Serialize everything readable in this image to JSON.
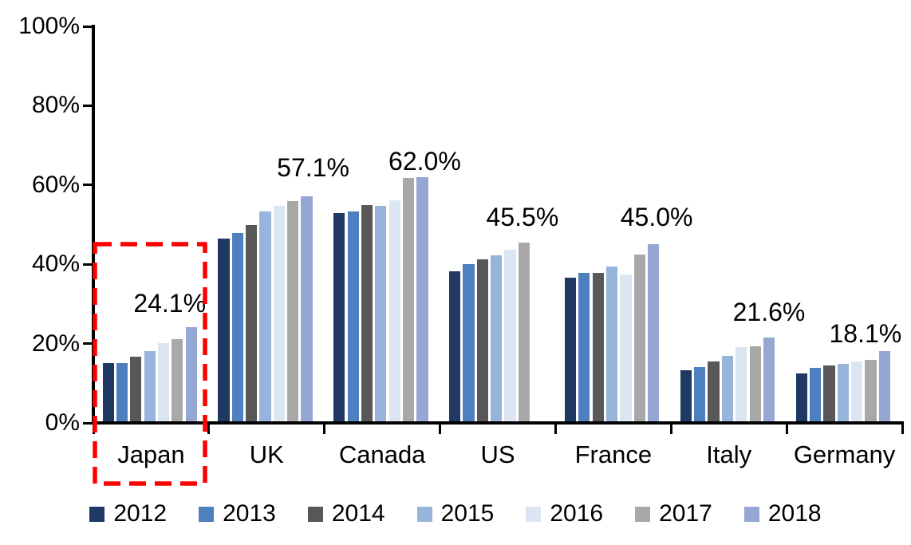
{
  "chart_data": {
    "type": "bar",
    "title": "",
    "categories": [
      "Japan",
      "UK",
      "Canada",
      "US",
      "France",
      "Italy",
      "Germany"
    ],
    "series": [
      {
        "name": "2012",
        "color": "#1F3864",
        "values": [
          15.0,
          46.4,
          53.0,
          38.2,
          36.6,
          13.3,
          12.5
        ]
      },
      {
        "name": "2013",
        "color": "#4E7FBE",
        "values": [
          15.1,
          47.8,
          53.4,
          40.1,
          37.8,
          14.1,
          13.9
        ]
      },
      {
        "name": "2014",
        "color": "#585858",
        "values": [
          16.7,
          50.0,
          55.0,
          41.2,
          37.8,
          15.5,
          14.4
        ]
      },
      {
        "name": "2015",
        "color": "#97B4DB",
        "values": [
          18.1,
          53.3,
          54.8,
          42.3,
          39.5,
          17.0,
          14.9
        ]
      },
      {
        "name": "2016",
        "color": "#DCE6F2",
        "values": [
          20.1,
          54.8,
          56.2,
          43.6,
          37.5,
          19.1,
          15.4
        ]
      },
      {
        "name": "2017",
        "color": "#A8A8A8",
        "values": [
          21.1,
          55.9,
          61.7,
          45.5,
          42.4,
          19.3,
          15.9
        ]
      },
      {
        "name": "2018",
        "color": "#97A7D3",
        "values": [
          24.1,
          57.1,
          62.0,
          null,
          45.0,
          21.6,
          18.1
        ]
      }
    ],
    "data_labels": [
      "24.1%",
      "57.1%",
      "62.0%",
      "45.5%",
      "45.0%",
      "21.6%",
      "18.1%"
    ],
    "y_axis": {
      "tick_labels": [
        "0%",
        "20%",
        "40%",
        "60%",
        "80%",
        "100%"
      ],
      "min": 0,
      "max": 100,
      "grid": false
    },
    "legend": {
      "position": "bottom",
      "entries": [
        "2012",
        "2013",
        "2014",
        "2015",
        "2016",
        "2017",
        "2018"
      ]
    },
    "highlight": {
      "target_category": "Japan",
      "style": "dashed-rectangle",
      "color": "#FF0000"
    }
  }
}
